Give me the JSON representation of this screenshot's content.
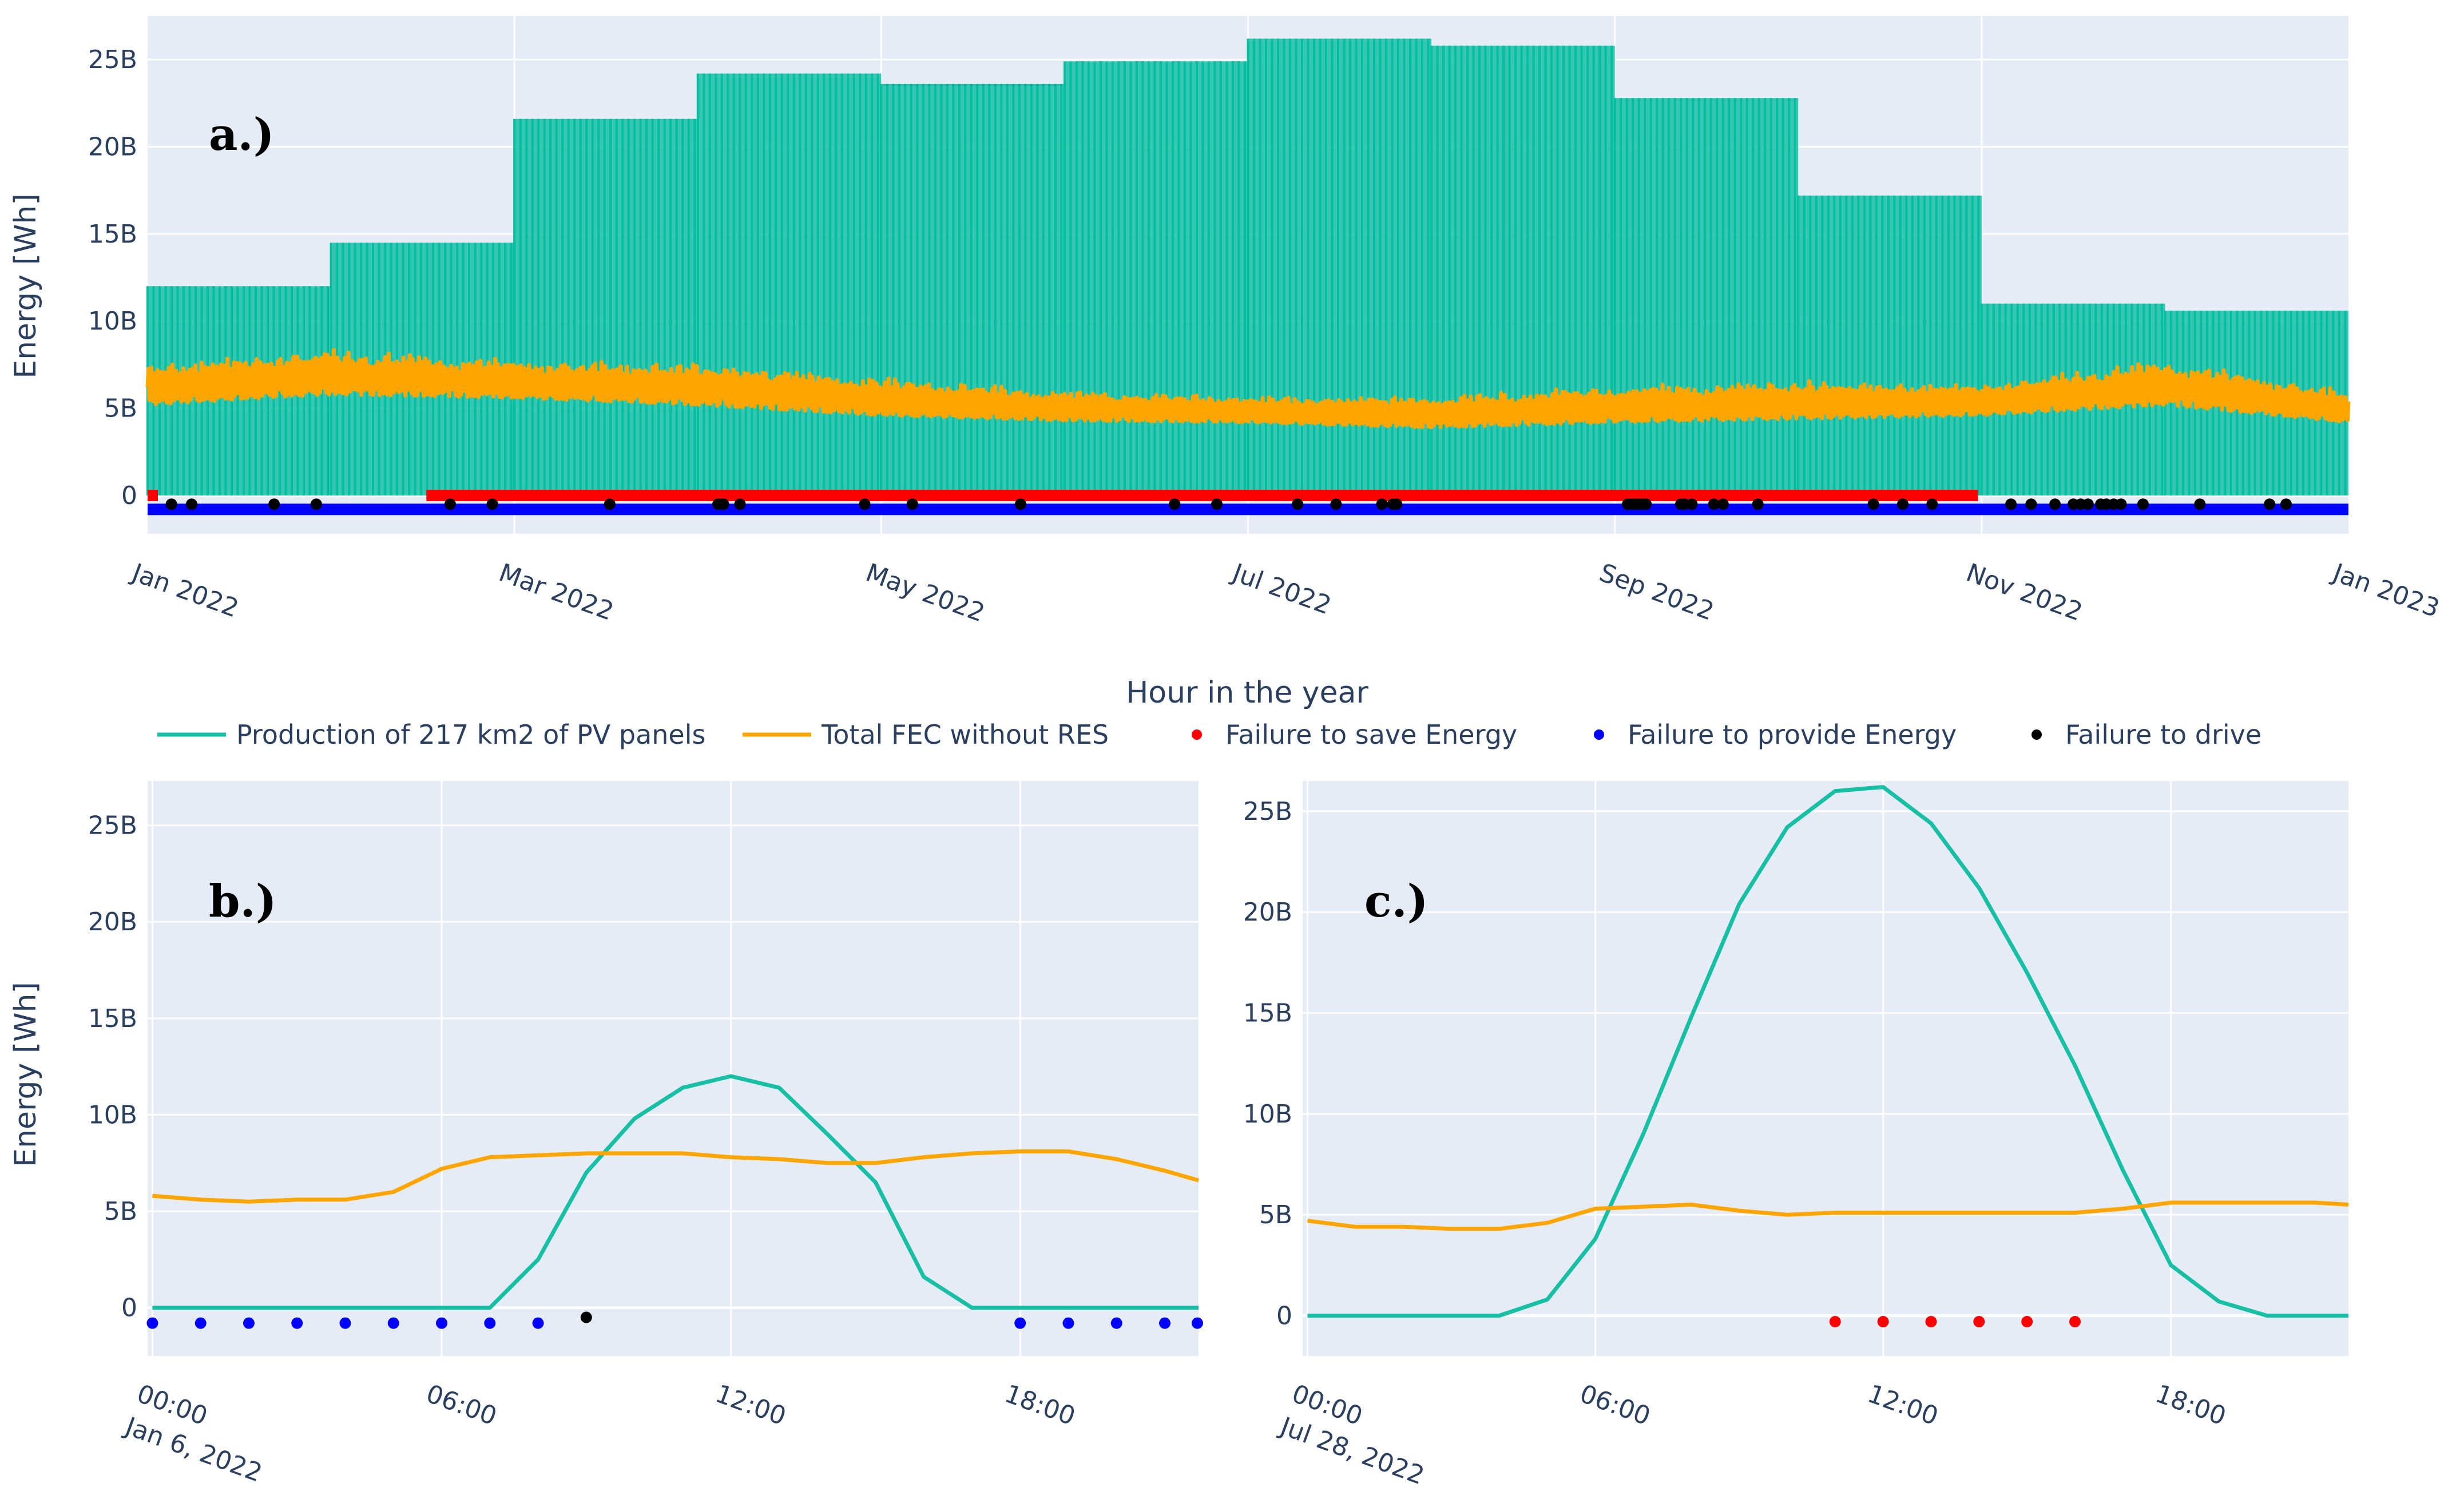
{
  "figure": {
    "y_axis_title": "Energy [Wh]",
    "legend": [
      {
        "label": "Production of 217 km2 of PV panels",
        "color": "#17BFA5",
        "kind": "line"
      },
      {
        "label": "Total FEC without RES",
        "color": "#FFA500",
        "kind": "line"
      },
      {
        "label": "Failure to save Energy",
        "color": "#FF0000",
        "kind": "marker"
      },
      {
        "label": "Failure to provide Energy",
        "color": "#0000FF",
        "kind": "marker"
      },
      {
        "label": "Failure to drive",
        "color": "#000000",
        "kind": "marker"
      }
    ]
  },
  "chart_data": [
    {
      "panel": "a.)",
      "type": "area",
      "xlabel": "Hour in the year",
      "ylabel": "Energy [Wh]",
      "x_ticks": [
        "Jan 2022",
        "Mar 2022",
        "May 2022",
        "Jul 2022",
        "Sep 2022",
        "Nov 2022",
        "Jan 2023"
      ],
      "y_ticks": [
        "0",
        "5B",
        "10B",
        "15B",
        "20B",
        "25B"
      ],
      "ylim_B": [
        -2.2,
        27.5
      ],
      "x_range_months": [
        0,
        12
      ],
      "series": [
        {
          "name": "Production of 217 km2 of PV panels",
          "note": "monthly daily-peak envelope of hourly production (B Wh)",
          "months": [
            0,
            1,
            2,
            3,
            4,
            5,
            6,
            7,
            8,
            9,
            10,
            11
          ],
          "values": [
            12.0,
            14.5,
            21.6,
            24.2,
            23.6,
            24.9,
            26.2,
            25.8,
            22.8,
            17.2,
            11.0,
            10.6
          ]
        },
        {
          "name": "Total FEC without RES",
          "note": "hourly consumption band (B Wh)",
          "months": [
            0,
            1,
            2,
            3,
            4,
            5,
            6,
            7,
            8,
            9,
            10,
            11,
            12
          ],
          "low": [
            5.2,
            5.8,
            5.6,
            5.2,
            4.6,
            4.3,
            4.2,
            3.9,
            4.2,
            4.4,
            4.6,
            5.2,
            4.2
          ],
          "high": [
            7.6,
            8.4,
            7.8,
            7.6,
            6.8,
            6.0,
            5.7,
            5.7,
            6.3,
            6.6,
            6.4,
            7.8,
            6.0
          ]
        },
        {
          "name": "Failure to save Energy",
          "months_from": 1.52,
          "months_to": 9.98,
          "level_B": 0
        },
        {
          "name": "Failure to provide Energy",
          "months_from": 0,
          "months_to": 12,
          "level_B": -0.8
        },
        {
          "name": "Failure to drive",
          "level_B": -0.5,
          "months": [
            0.13,
            0.24,
            0.69,
            0.92,
            1.65,
            1.88,
            2.52,
            3.11,
            3.13,
            3.14,
            3.23,
            3.91,
            4.17,
            4.76,
            5.6,
            5.83,
            6.27,
            6.48,
            6.73,
            6.79,
            6.81,
            8.07,
            8.09,
            8.11,
            8.13,
            8.15,
            8.17,
            8.36,
            8.38,
            8.42,
            8.54,
            8.59,
            8.78,
            9.41,
            9.57,
            9.73,
            10.16,
            10.27,
            10.4,
            10.5,
            10.54,
            10.58,
            10.65,
            10.68,
            10.72,
            10.76,
            10.88,
            11.19,
            11.57,
            11.66
          ]
        }
      ]
    },
    {
      "panel": "b.)",
      "type": "line",
      "date": "Jan 6, 2022",
      "x_ticks": [
        "00:00",
        "06:00",
        "12:00",
        "18:00"
      ],
      "y_ticks": [
        "0",
        "5B",
        "10B",
        "15B",
        "20B",
        "25B"
      ],
      "ylim_B": [
        -2.5,
        27.3
      ],
      "xlim_hours": [
        -0.1,
        21.7
      ],
      "series": [
        {
          "name": "Production of 217 km2 of PV panels",
          "x": [
            0,
            1,
            2,
            3,
            4,
            5,
            6,
            7,
            8,
            9,
            10,
            11,
            12,
            13,
            14,
            15,
            16,
            17,
            18,
            19,
            20,
            21,
            21.7
          ],
          "values": [
            0,
            0,
            0,
            0,
            0,
            0,
            0,
            0,
            2.5,
            7.0,
            9.8,
            11.4,
            12.0,
            11.4,
            9.0,
            6.5,
            1.6,
            0,
            0,
            0,
            0,
            0,
            0
          ]
        },
        {
          "name": "Total FEC without RES",
          "x": [
            0,
            1,
            2,
            3,
            4,
            5,
            6,
            7,
            8,
            9,
            10,
            11,
            12,
            13,
            14,
            15,
            16,
            17,
            18,
            19,
            20,
            21,
            21.7
          ],
          "values": [
            5.8,
            5.6,
            5.5,
            5.6,
            5.6,
            6.0,
            7.2,
            7.8,
            7.9,
            8.0,
            8.0,
            8.0,
            7.8,
            7.7,
            7.5,
            7.5,
            7.8,
            8.0,
            8.1,
            8.1,
            7.7,
            7.1,
            6.6
          ]
        },
        {
          "name": "Failure to provide Energy",
          "level_B": -0.8,
          "x": [
            0,
            1,
            2,
            3,
            4,
            5,
            6,
            7,
            8,
            18,
            19,
            20,
            21,
            21.9
          ]
        },
        {
          "name": "Failure to drive",
          "level_B": -0.5,
          "x": [
            9
          ]
        }
      ]
    },
    {
      "panel": "c.)",
      "type": "line",
      "date": "Jul 28, 2022",
      "x_ticks": [
        "00:00",
        "06:00",
        "12:00",
        "18:00"
      ],
      "y_ticks": [
        "0",
        "5B",
        "10B",
        "15B",
        "20B",
        "25B"
      ],
      "ylim_B": [
        -2.0,
        26.5
      ],
      "xlim_hours": [
        -0.1,
        21.7
      ],
      "series": [
        {
          "name": "Production of 217 km2 of PV panels",
          "x": [
            0,
            1,
            2,
            3,
            4,
            5,
            6,
            7,
            8,
            9,
            10,
            11,
            12,
            13,
            14,
            15,
            16,
            17,
            18,
            19,
            20,
            21,
            21.7
          ],
          "values": [
            0,
            0,
            0,
            0,
            0,
            0.8,
            3.8,
            9.0,
            14.8,
            20.4,
            24.2,
            26.0,
            26.2,
            24.4,
            21.2,
            17.0,
            12.4,
            7.2,
            2.5,
            0.7,
            0,
            0,
            0
          ]
        },
        {
          "name": "Total FEC without RES",
          "x": [
            0,
            1,
            2,
            3,
            4,
            5,
            6,
            7,
            8,
            9,
            10,
            11,
            12,
            13,
            14,
            15,
            16,
            17,
            18,
            19,
            20,
            21,
            21.7
          ],
          "values": [
            4.7,
            4.4,
            4.4,
            4.3,
            4.3,
            4.6,
            5.3,
            5.4,
            5.5,
            5.2,
            5.0,
            5.1,
            5.1,
            5.1,
            5.1,
            5.1,
            5.1,
            5.3,
            5.6,
            5.6,
            5.6,
            5.6,
            5.5
          ]
        },
        {
          "name": "Failure to save Energy",
          "level_B": -0.3,
          "x": [
            11,
            12,
            13,
            14,
            15,
            16
          ]
        }
      ]
    }
  ]
}
